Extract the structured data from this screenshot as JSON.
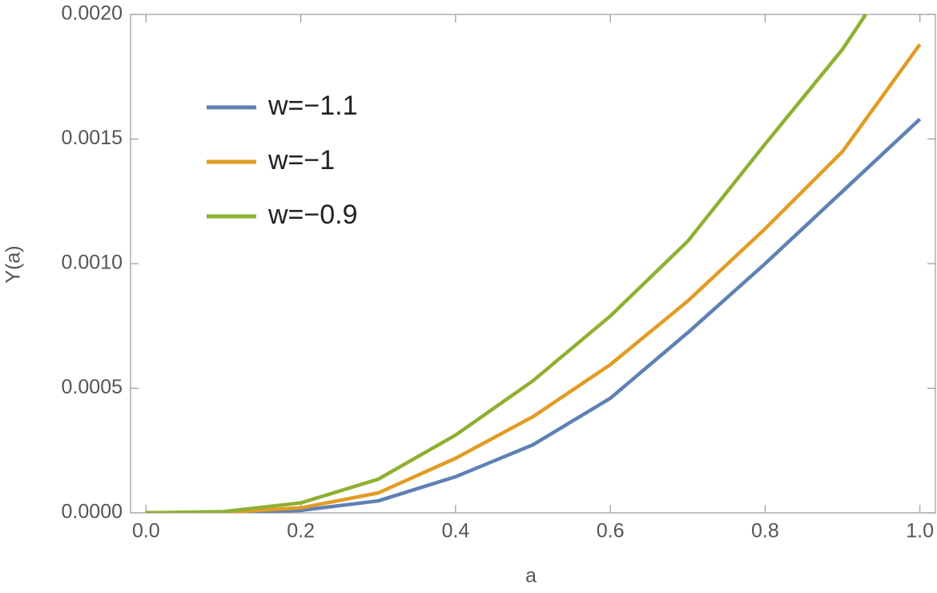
{
  "chart_data": {
    "type": "line",
    "xlabel": "a",
    "ylabel": "Y(a)",
    "xlim": [
      -0.02,
      1.02
    ],
    "ylim": [
      0,
      0.002
    ],
    "xticks": [
      {
        "value": 0,
        "label": "0.0"
      },
      {
        "value": 0.2,
        "label": "0.2"
      },
      {
        "value": 0.4,
        "label": "0.4"
      },
      {
        "value": 0.6,
        "label": "0.6"
      },
      {
        "value": 0.8,
        "label": "0.8"
      },
      {
        "value": 1,
        "label": "1.0"
      }
    ],
    "yticks": [
      {
        "value": 0,
        "label": "0.0000"
      },
      {
        "value": 0.0005,
        "label": "0.0005"
      },
      {
        "value": 0.001,
        "label": "0.0010"
      },
      {
        "value": 0.0015,
        "label": "0.0015"
      },
      {
        "value": 0.002,
        "label": "0.0020"
      }
    ],
    "legend": "upper left",
    "series": [
      {
        "name": "w=−1.1",
        "color": "#5e81b5",
        "x": [
          0,
          0.1,
          0.2,
          0.3,
          0.4,
          0.5,
          0.6,
          0.7,
          0.8,
          0.9,
          1.0
        ],
        "values": [
          0,
          1e-06,
          1e-05,
          4.8e-05,
          0.000145,
          0.000273,
          0.00046,
          0.000723,
          0.001,
          0.00129,
          0.00158
        ]
      },
      {
        "name": "w=−1",
        "color": "#e19c24",
        "x": [
          0,
          0.1,
          0.2,
          0.3,
          0.4,
          0.5,
          0.6,
          0.7,
          0.8,
          0.9,
          1.0
        ],
        "values": [
          0,
          2e-06,
          2e-05,
          8e-05,
          0.000219,
          0.000386,
          0.000595,
          0.00085,
          0.00114,
          0.00145,
          0.00188
        ]
      },
      {
        "name": "w=−0.9",
        "color": "#8fb032",
        "x": [
          0,
          0.1,
          0.2,
          0.3,
          0.4,
          0.5,
          0.6,
          0.7,
          0.8,
          0.9,
          0.93
        ],
        "values": [
          0,
          5e-06,
          4e-05,
          0.000135,
          0.000312,
          0.00053,
          0.00079,
          0.00109,
          0.00148,
          0.00186,
          0.002
        ]
      }
    ]
  }
}
